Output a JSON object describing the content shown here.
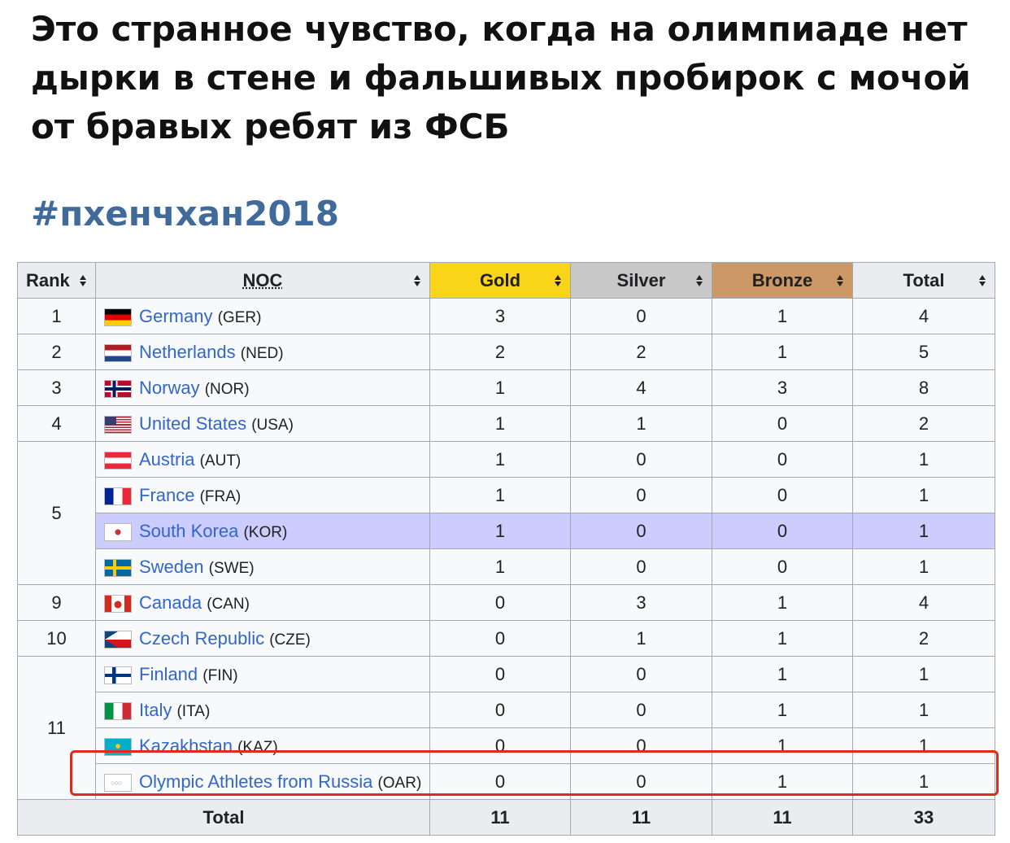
{
  "post": {
    "text": "Это странное чувство, когда на олимпиаде нет дырки в стене и фальшивых пробирок с мочой от бравых ребят из ФСБ",
    "hashtag": "#пхенчхан2018"
  },
  "table": {
    "headers": {
      "rank": "Rank",
      "noc": "NOC",
      "gold": "Gold",
      "silver": "Silver",
      "bronze": "Bronze",
      "total": "Total"
    },
    "colors": {
      "gold": "#f9d419",
      "silver": "#c8c8c8",
      "bronze": "#cc9966",
      "host_row": "#ccccff",
      "highlight_box": "#e02a1e",
      "hashtag": "#3f6a9a"
    },
    "rows": [
      {
        "rank": "1",
        "country": "Germany",
        "code": "(GER)",
        "flag": "germany-flag-icon",
        "gold": "3",
        "silver": "0",
        "bronze": "1",
        "total": "4"
      },
      {
        "rank": "2",
        "country": "Netherlands",
        "code": "(NED)",
        "flag": "netherlands-flag-icon",
        "gold": "2",
        "silver": "2",
        "bronze": "1",
        "total": "5"
      },
      {
        "rank": "3",
        "country": "Norway",
        "code": "(NOR)",
        "flag": "norway-flag-icon",
        "gold": "1",
        "silver": "4",
        "bronze": "3",
        "total": "8"
      },
      {
        "rank": "4",
        "country": "United States",
        "code": "(USA)",
        "flag": "usa-flag-icon",
        "gold": "1",
        "silver": "1",
        "bronze": "0",
        "total": "2"
      },
      {
        "rank": "5",
        "country": "Austria",
        "code": "(AUT)",
        "flag": "austria-flag-icon",
        "gold": "1",
        "silver": "0",
        "bronze": "0",
        "total": "1"
      },
      {
        "rank": "",
        "country": "France",
        "code": "(FRA)",
        "flag": "france-flag-icon",
        "gold": "1",
        "silver": "0",
        "bronze": "0",
        "total": "1"
      },
      {
        "rank": "",
        "country": "South Korea",
        "code": "(KOR)",
        "flag": "south-korea-flag-icon",
        "gold": "1",
        "silver": "0",
        "bronze": "0",
        "total": "1",
        "host": true
      },
      {
        "rank": "",
        "country": "Sweden",
        "code": "(SWE)",
        "flag": "sweden-flag-icon",
        "gold": "1",
        "silver": "0",
        "bronze": "0",
        "total": "1"
      },
      {
        "rank": "9",
        "country": "Canada",
        "code": "(CAN)",
        "flag": "canada-flag-icon",
        "gold": "0",
        "silver": "3",
        "bronze": "1",
        "total": "4"
      },
      {
        "rank": "10",
        "country": "Czech Republic",
        "code": "(CZE)",
        "flag": "czech-flag-icon",
        "gold": "0",
        "silver": "1",
        "bronze": "1",
        "total": "2"
      },
      {
        "rank": "11",
        "country": "Finland",
        "code": "(FIN)",
        "flag": "finland-flag-icon",
        "gold": "0",
        "silver": "0",
        "bronze": "1",
        "total": "1"
      },
      {
        "rank": "",
        "country": "Italy",
        "code": "(ITA)",
        "flag": "italy-flag-icon",
        "gold": "0",
        "silver": "0",
        "bronze": "1",
        "total": "1"
      },
      {
        "rank": "",
        "country": "Kazakhstan",
        "code": "(KAZ)",
        "flag": "kazakhstan-flag-icon",
        "gold": "0",
        "silver": "0",
        "bronze": "1",
        "total": "1"
      },
      {
        "rank": "",
        "country": "Olympic Athletes from Russia",
        "code": "(OAR)",
        "flag": "olympic-flag-icon",
        "gold": "0",
        "silver": "0",
        "bronze": "1",
        "total": "1"
      }
    ],
    "totals": {
      "label": "Total",
      "gold": "11",
      "silver": "11",
      "bronze": "11",
      "total": "33"
    }
  }
}
